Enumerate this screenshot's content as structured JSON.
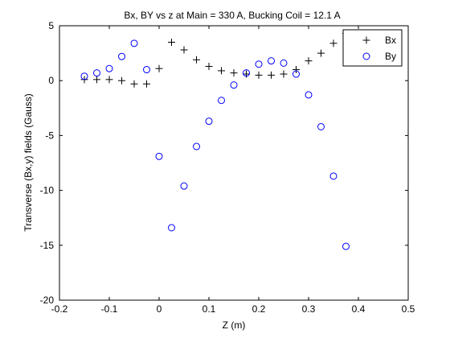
{
  "chart_data": {
    "type": "scatter",
    "title": "Bx, BY vs z at Main = 330 A, Bucking Coil = 12.1 A",
    "xlabel": "Z (m)",
    "ylabel": "Transverse (Bx,y) fields  (Gauss)",
    "xlim": [
      -0.2,
      0.5
    ],
    "ylim": [
      -20,
      5
    ],
    "xticks": [
      -0.2,
      -0.1,
      0,
      0.1,
      0.2,
      0.3,
      0.4,
      0.5
    ],
    "xtick_labels": [
      "-0.2",
      "-0.1",
      "0",
      "0.1",
      "0.2",
      "0.3",
      "0.4",
      "0.5"
    ],
    "yticks": [
      -20,
      -15,
      -10,
      -5,
      0,
      5
    ],
    "ytick_labels": [
      "-20",
      "-15",
      "-10",
      "-5",
      "0",
      "5"
    ],
    "grid": false,
    "legend_position": "top-right",
    "series": [
      {
        "name": "Bx",
        "marker": "plus",
        "color": "#000000",
        "points": [
          [
            -0.15,
            0.1
          ],
          [
            -0.125,
            0.1
          ],
          [
            -0.1,
            0.1
          ],
          [
            -0.075,
            0.0
          ],
          [
            -0.05,
            -0.3
          ],
          [
            -0.025,
            -0.3
          ],
          [
            0.0,
            1.1
          ],
          [
            0.025,
            3.5
          ],
          [
            0.05,
            2.8
          ],
          [
            0.075,
            1.9
          ],
          [
            0.1,
            1.3
          ],
          [
            0.125,
            0.9
          ],
          [
            0.15,
            0.7
          ],
          [
            0.175,
            0.6
          ],
          [
            0.2,
            0.5
          ],
          [
            0.225,
            0.5
          ],
          [
            0.25,
            0.6
          ],
          [
            0.275,
            1.0
          ],
          [
            0.3,
            1.8
          ],
          [
            0.325,
            2.5
          ],
          [
            0.35,
            3.4
          ],
          [
            0.375,
            4.3
          ]
        ]
      },
      {
        "name": "By",
        "marker": "circle",
        "color": "#0000ff",
        "points": [
          [
            -0.15,
            0.4
          ],
          [
            -0.125,
            0.7
          ],
          [
            -0.1,
            1.1
          ],
          [
            -0.075,
            2.2
          ],
          [
            -0.05,
            3.4
          ],
          [
            -0.025,
            1.0
          ],
          [
            0.0,
            -6.9
          ],
          [
            0.025,
            -13.4
          ],
          [
            0.05,
            -9.6
          ],
          [
            0.075,
            -6.0
          ],
          [
            0.1,
            -3.7
          ],
          [
            0.125,
            -1.8
          ],
          [
            0.15,
            -0.4
          ],
          [
            0.175,
            0.7
          ],
          [
            0.2,
            1.5
          ],
          [
            0.225,
            1.8
          ],
          [
            0.25,
            1.6
          ],
          [
            0.275,
            0.6
          ],
          [
            0.3,
            -1.3
          ],
          [
            0.325,
            -4.2
          ],
          [
            0.35,
            -8.7
          ],
          [
            0.375,
            -15.1
          ]
        ]
      }
    ]
  }
}
